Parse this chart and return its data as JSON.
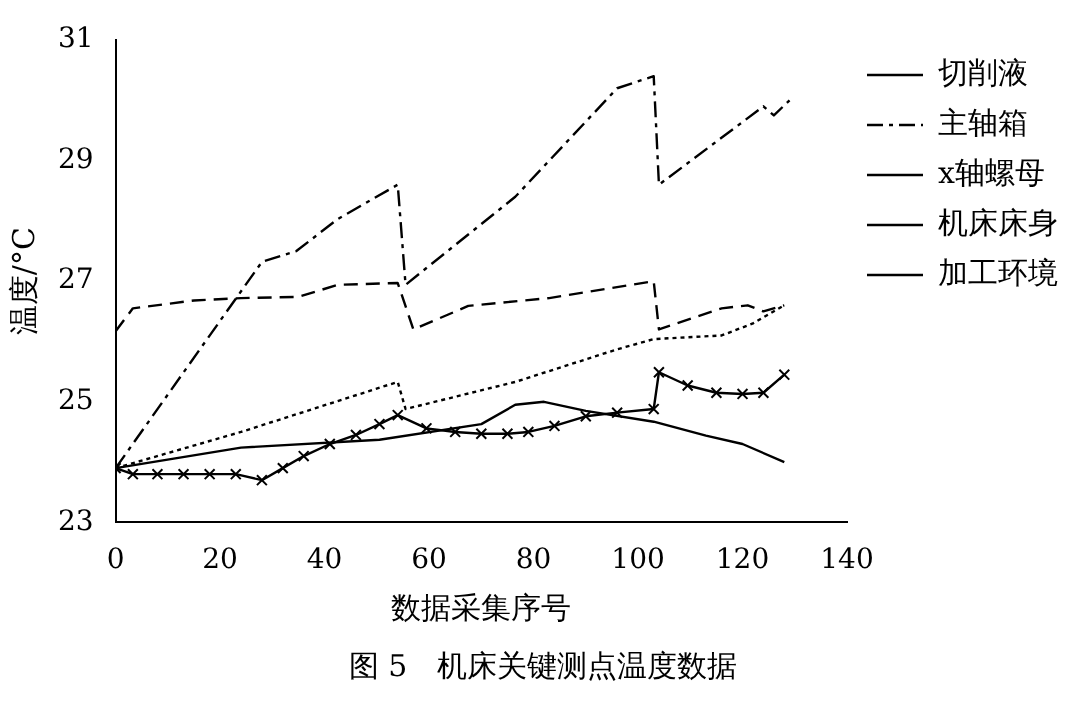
{
  "chart_data": {
    "type": "line",
    "xlabel": "数据采集序号",
    "ylabel": "温度/°C",
    "annotations": [
      "图 5　机床关键测点温度数据"
    ],
    "xlim": [
      0,
      140
    ],
    "xticks": [
      0,
      20,
      40,
      60,
      80,
      100,
      120,
      140
    ],
    "ylim": [
      23,
      31
    ],
    "yticks": [
      23,
      25,
      27,
      29,
      31
    ],
    "grid": false,
    "legend": "right",
    "series": [
      {
        "name": "切削液",
        "color": "#000000",
        "line_style": "dashed",
        "marker": "none",
        "x": [
          0,
          3.3,
          15,
          24,
          35,
          42.5,
          54,
          57,
          67.5,
          83,
          103,
          104,
          116,
          121,
          124,
          128
        ],
        "values": [
          26.17,
          26.55,
          26.68,
          26.72,
          26.74,
          26.94,
          26.97,
          26.2,
          26.59,
          26.72,
          27.0,
          26.2,
          26.55,
          26.6,
          26.5,
          26.6
        ]
      },
      {
        "name": "主轴箱",
        "color": "#000000",
        "line_style": "dashdot",
        "marker": "none",
        "x": [
          0,
          28,
          34.6,
          42.5,
          54,
          55.5,
          76.5,
          96,
          103,
          104,
          124,
          126,
          129
        ],
        "values": [
          23.9,
          27.32,
          27.5,
          28.03,
          28.6,
          26.94,
          28.4,
          30.2,
          30.4,
          28.6,
          29.9,
          29.75,
          30.0
        ]
      },
      {
        "name": "x轴螺母",
        "color": "#000000",
        "line_style": "dotted",
        "marker": "none",
        "x": [
          0,
          24,
          54,
          55.5,
          76.5,
          96,
          103,
          116,
          122,
          128
        ],
        "values": [
          23.9,
          24.5,
          25.33,
          24.88,
          25.33,
          25.87,
          26.04,
          26.1,
          26.3,
          26.6
        ]
      },
      {
        "name": "机床床身",
        "color": "#000000",
        "line_style": "solid",
        "marker": "cross",
        "x": [
          0,
          3.3,
          8,
          13,
          18,
          23,
          28,
          32,
          36,
          41,
          46,
          50.5,
          54,
          59.5,
          65,
          70,
          75,
          79,
          84,
          90,
          96,
          103,
          104,
          109.5,
          115,
          120,
          124,
          128
        ],
        "values": [
          23.9,
          23.8,
          23.8,
          23.8,
          23.8,
          23.8,
          23.7,
          23.9,
          24.1,
          24.3,
          24.45,
          24.63,
          24.78,
          24.56,
          24.5,
          24.47,
          24.47,
          24.5,
          24.6,
          24.76,
          24.82,
          24.88,
          25.49,
          25.27,
          25.15,
          25.13,
          25.15,
          25.45
        ]
      },
      {
        "name": "加工环境",
        "color": "#000000",
        "line_style": "solid",
        "marker": "none",
        "x": [
          0,
          24,
          50.5,
          70,
          76.5,
          82,
          90,
          103,
          113,
          120,
          128
        ],
        "values": [
          23.9,
          24.24,
          24.37,
          24.63,
          24.95,
          25.0,
          24.85,
          24.67,
          24.44,
          24.3,
          24.0
        ]
      }
    ]
  }
}
